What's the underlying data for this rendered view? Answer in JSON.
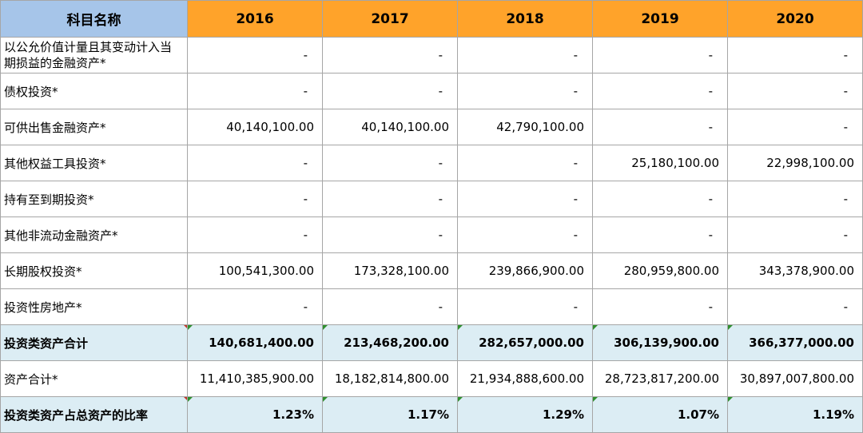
{
  "header": {
    "name_col": "科目名称",
    "years": [
      "2016",
      "2017",
      "2018",
      "2019",
      "2020"
    ]
  },
  "rows": [
    {
      "label": "以公允价值计量且其变动计入当期损益的金融资产*",
      "values": [
        "-",
        "-",
        "-",
        "-",
        "-"
      ],
      "summary": false
    },
    {
      "label": "债权投资*",
      "values": [
        "-",
        "-",
        "-",
        "-",
        "-"
      ],
      "summary": false
    },
    {
      "label": "可供出售金融资产*",
      "values": [
        "40,140,100.00",
        "40,140,100.00",
        "42,790,100.00",
        "-",
        "-"
      ],
      "summary": false
    },
    {
      "label": "其他权益工具投资*",
      "values": [
        "-",
        "-",
        "-",
        "25,180,100.00",
        "22,998,100.00"
      ],
      "summary": false
    },
    {
      "label": "持有至到期投资*",
      "values": [
        "-",
        "-",
        "-",
        "-",
        "-"
      ],
      "summary": false
    },
    {
      "label": "其他非流动金融资产*",
      "values": [
        "-",
        "-",
        "-",
        "-",
        "-"
      ],
      "summary": false
    },
    {
      "label": "长期股权投资*",
      "values": [
        "100,541,300.00",
        "173,328,100.00",
        "239,866,900.00",
        "280,959,800.00",
        "343,378,900.00"
      ],
      "summary": false
    },
    {
      "label": "投资性房地产*",
      "values": [
        "-",
        "-",
        "-",
        "-",
        "-"
      ],
      "summary": false
    },
    {
      "label": "投资类资产合计",
      "values": [
        "140,681,400.00",
        "213,468,200.00",
        "282,657,000.00",
        "306,139,900.00",
        "366,377,000.00"
      ],
      "summary": true
    },
    {
      "label": "资产合计*",
      "values": [
        "11,410,385,900.00",
        "18,182,814,800.00",
        "21,934,888,600.00",
        "28,723,817,200.00",
        "30,897,007,800.00"
      ],
      "summary": false
    },
    {
      "label": "投资类资产占总资产的比率",
      "values": [
        "1.23%",
        "1.17%",
        "1.29%",
        "1.07%",
        "1.19%"
      ],
      "summary": true
    }
  ],
  "colors": {
    "header_orange": "#ffa32a",
    "header_blue": "#a6c5e9",
    "summary_row": "#dcedf4",
    "grid": "#a6a6a6"
  }
}
